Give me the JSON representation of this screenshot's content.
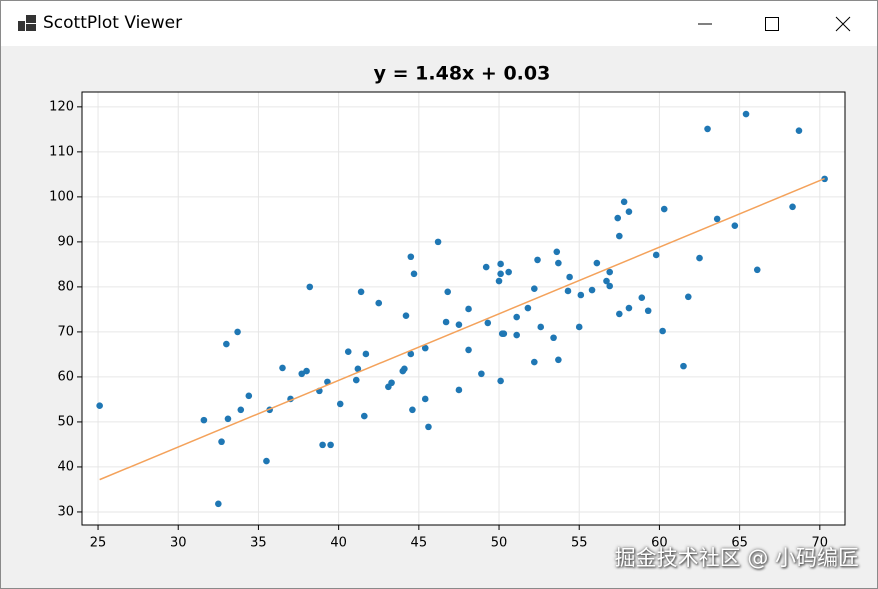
{
  "window": {
    "title": "ScottPlot Viewer"
  },
  "watermark": "掘金技术社区 @ 小码编匠",
  "chart_data": {
    "type": "scatter",
    "title": "y = 1.48x + 0.03",
    "xlim": [
      24.0,
      71.57
    ],
    "ylim": [
      27.1,
      123.3
    ],
    "xticks": [
      25,
      30,
      35,
      40,
      45,
      50,
      55,
      60,
      65,
      70
    ],
    "yticks": [
      30,
      40,
      50,
      60,
      70,
      80,
      90,
      100,
      110,
      120
    ],
    "grid": true,
    "series": [
      {
        "type": "scatter",
        "color": "#1f77b4",
        "x": [
          25.1,
          31.6,
          32.5,
          32.7,
          33.0,
          33.1,
          33.7,
          33.9,
          34.4,
          35.5,
          35.7,
          36.5,
          37.0,
          37.7,
          38.0,
          38.2,
          38.8,
          39.0,
          39.3,
          39.5,
          40.1,
          40.6,
          41.1,
          41.2,
          41.4,
          41.6,
          41.7,
          42.5,
          43.1,
          43.3,
          44.0,
          44.1,
          44.2,
          44.5,
          44.5,
          44.6,
          44.7,
          45.4,
          45.4,
          45.6,
          46.2,
          46.7,
          46.8,
          47.5,
          47.5,
          48.1,
          48.1,
          48.9,
          49.2,
          49.3,
          50.0,
          50.1,
          50.1,
          50.1,
          50.2,
          50.3,
          50.6,
          51.1,
          51.1,
          51.8,
          52.2,
          52.2,
          52.4,
          52.6,
          53.4,
          53.6,
          53.7,
          53.7,
          54.3,
          54.4,
          55.0,
          55.1,
          55.8,
          56.1,
          56.7,
          56.9,
          56.9,
          57.4,
          57.5,
          57.5,
          57.8,
          58.1,
          58.1,
          58.9,
          59.3,
          59.8,
          60.2,
          60.3,
          61.5,
          61.8,
          62.5,
          63.0,
          63.6,
          64.7,
          65.4,
          66.1,
          68.3,
          68.7,
          70.3
        ],
        "values": [
          53.6,
          50.4,
          31.8,
          45.6,
          67.3,
          50.7,
          70.0,
          52.7,
          55.8,
          41.3,
          52.7,
          62.0,
          55.1,
          60.7,
          61.3,
          80.0,
          56.9,
          44.9,
          58.9,
          44.9,
          54.0,
          65.6,
          59.3,
          61.8,
          78.9,
          51.3,
          65.1,
          76.4,
          57.8,
          58.7,
          61.3,
          61.8,
          73.6,
          65.1,
          86.7,
          52.7,
          82.9,
          55.1,
          66.4,
          48.9,
          90.0,
          72.2,
          78.9,
          71.6,
          57.1,
          75.1,
          66.0,
          60.7,
          84.4,
          72.0,
          81.3,
          82.9,
          85.1,
          59.1,
          69.6,
          69.6,
          83.3,
          73.3,
          69.3,
          75.3,
          79.6,
          63.3,
          86.0,
          71.1,
          68.7,
          87.8,
          63.8,
          85.3,
          79.1,
          82.2,
          71.1,
          78.2,
          79.3,
          85.3,
          81.3,
          83.3,
          80.2,
          95.3,
          91.3,
          74.0,
          98.9,
          75.3,
          96.7,
          77.6,
          74.7,
          87.1,
          70.2,
          97.3,
          62.4,
          77.8,
          86.4,
          115.1,
          95.1,
          93.6,
          118.4,
          83.8,
          97.8,
          114.7,
          104.0
        ]
      },
      {
        "type": "line",
        "color": "#f4a25b",
        "x": [
          25.1,
          70.3
        ],
        "values": [
          37.18,
          104.07
        ]
      }
    ]
  }
}
